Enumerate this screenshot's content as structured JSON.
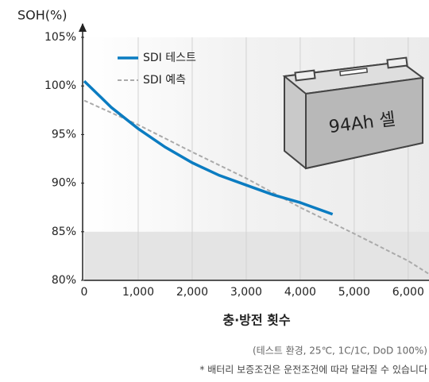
{
  "chart_data": {
    "type": "line",
    "y_label": "SOH(%)",
    "x_label": "충·방전 횟수",
    "annotation": "94Ah 셀",
    "notes": [
      "(테스트 환경, 25℃, 1C/1C, DoD 100%)",
      "* 배터리 보증조건은 운전조건에 따라 달라질 수 있습니다"
    ],
    "xlim": [
      0,
      6400
    ],
    "ylim": [
      80,
      105
    ],
    "xticks": [
      0,
      {
        "value": 1000,
        "label": "1,000"
      },
      {
        "value": 2000,
        "label": "2,000"
      },
      {
        "value": 3000,
        "label": "3,000"
      },
      {
        "value": 4000,
        "label": "4,000"
      },
      {
        "value": 5000,
        "label": "5,000"
      },
      {
        "value": 6000,
        "label": "6,000"
      }
    ],
    "yticks": [
      {
        "value": 80,
        "label": "80%"
      },
      {
        "value": 85,
        "label": "85%"
      },
      {
        "value": 90,
        "label": "90%"
      },
      {
        "value": 95,
        "label": "95%"
      },
      {
        "value": 100,
        "label": "100%"
      },
      {
        "value": 105,
        "label": "105%"
      }
    ],
    "grid": true,
    "legend": "upper left",
    "series": [
      {
        "name": "SDI 테스트",
        "color": "#0b7cc1",
        "dash": false,
        "x": [
          0,
          500,
          1000,
          1500,
          2000,
          2500,
          3000,
          3500,
          4000,
          4600
        ],
        "values": [
          100.5,
          97.8,
          95.6,
          93.7,
          92.1,
          90.8,
          89.8,
          88.8,
          88.0,
          86.8
        ]
      },
      {
        "name": "SDI 예측",
        "color": "#aaaaaa",
        "dash": true,
        "x": [
          0,
          1000,
          2000,
          3000,
          4000,
          5000,
          6000,
          6400
        ],
        "values": [
          98.5,
          96.0,
          93.2,
          90.5,
          87.5,
          84.8,
          82.0,
          80.6
        ]
      }
    ]
  }
}
